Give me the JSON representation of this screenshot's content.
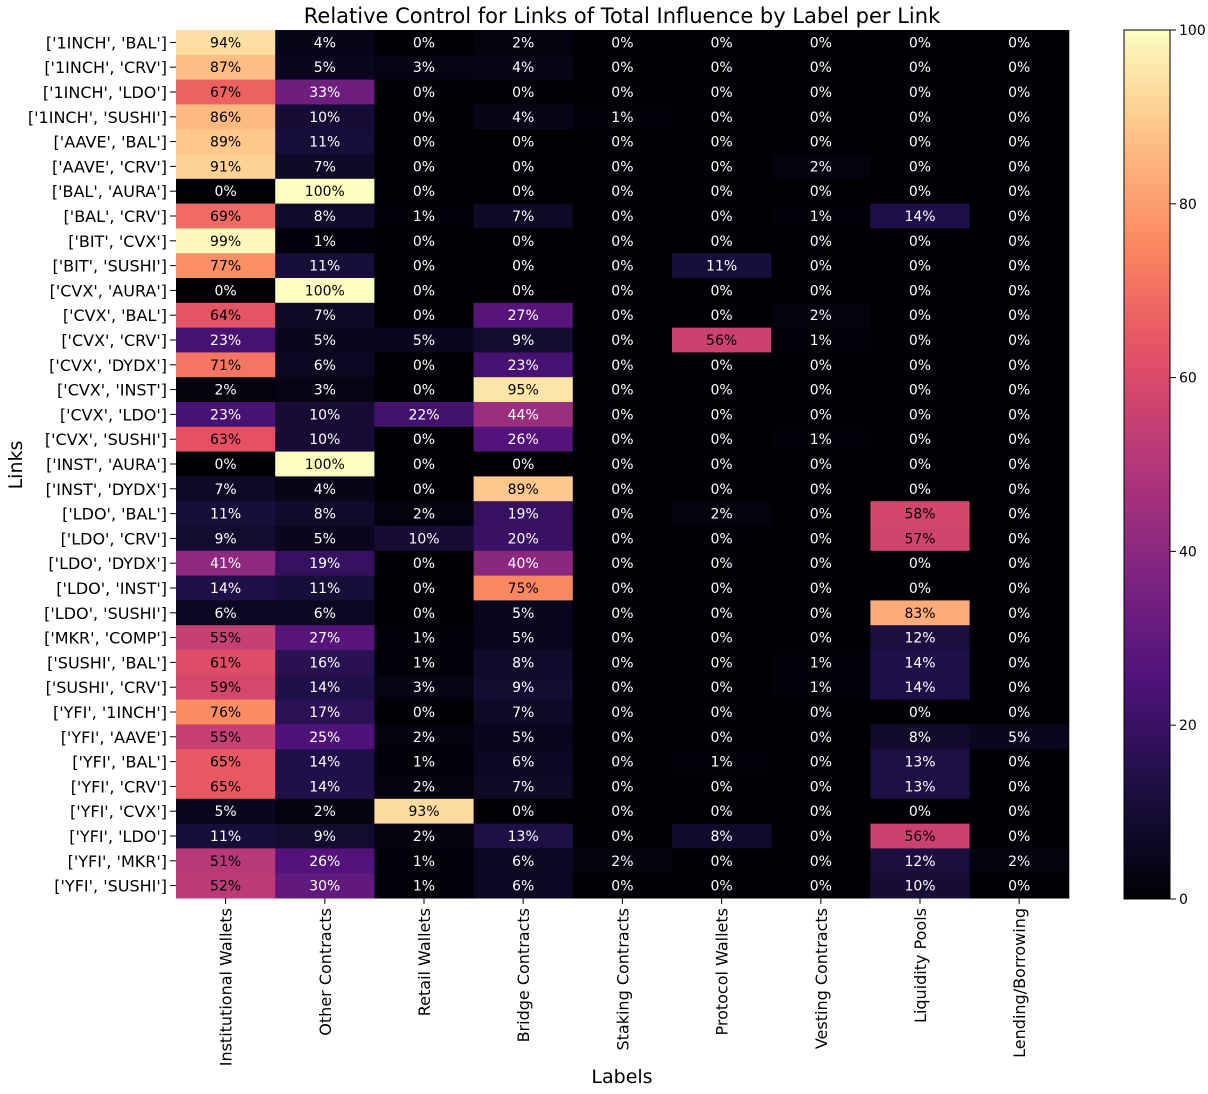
{
  "chart_data": {
    "type": "heatmap",
    "title": "Relative Control for Links of Total Influence by Label per Link",
    "xlabel": "Labels",
    "ylabel": "Links",
    "colormap": "magma",
    "colorbar": {
      "min": 0,
      "max": 100,
      "ticks": [
        0,
        20,
        40,
        60,
        80,
        100
      ]
    },
    "columns": [
      "Institutional Wallets",
      "Other Contracts",
      "Retail Wallets",
      "Bridge Contracts",
      "Staking Contracts",
      "Protocol Wallets",
      "Vesting Contracts",
      "Liquidity Pools",
      "Lending/Borrowing"
    ],
    "rows": [
      "['1INCH', 'BAL']",
      "['1INCH', 'CRV']",
      "['1INCH', 'LDO']",
      "['1INCH', 'SUSHI']",
      "['AAVE', 'BAL']",
      "['AAVE', 'CRV']",
      "['BAL', 'AURA']",
      "['BAL', 'CRV']",
      "['BIT', 'CVX']",
      "['BIT', 'SUSHI']",
      "['CVX', 'AURA']",
      "['CVX', 'BAL']",
      "['CVX', 'CRV']",
      "['CVX', 'DYDX']",
      "['CVX', 'INST']",
      "['CVX', 'LDO']",
      "['CVX', 'SUSHI']",
      "['INST', 'AURA']",
      "['INST', 'DYDX']",
      "['LDO', 'BAL']",
      "['LDO', 'CRV']",
      "['LDO', 'DYDX']",
      "['LDO', 'INST']",
      "['LDO', 'SUSHI']",
      "['MKR', 'COMP']",
      "['SUSHI', 'BAL']",
      "['SUSHI', 'CRV']",
      "['YFI', '1INCH']",
      "['YFI', 'AAVE']",
      "['YFI', 'BAL']",
      "['YFI', 'CRV']",
      "['YFI', 'CVX']",
      "['YFI', 'LDO']",
      "['YFI', 'MKR']",
      "['YFI', 'SUSHI']"
    ],
    "values": [
      [
        94,
        4,
        0,
        2,
        0,
        0,
        0,
        0,
        0
      ],
      [
        87,
        5,
        3,
        4,
        0,
        0,
        0,
        0,
        0
      ],
      [
        67,
        33,
        0,
        0,
        0,
        0,
        0,
        0,
        0
      ],
      [
        86,
        10,
        0,
        4,
        1,
        0,
        0,
        0,
        0
      ],
      [
        89,
        11,
        0,
        0,
        0,
        0,
        0,
        0,
        0
      ],
      [
        91,
        7,
        0,
        0,
        0,
        0,
        2,
        0,
        0
      ],
      [
        0,
        100,
        0,
        0,
        0,
        0,
        0,
        0,
        0
      ],
      [
        69,
        8,
        1,
        7,
        0,
        0,
        1,
        14,
        0
      ],
      [
        99,
        1,
        0,
        0,
        0,
        0,
        0,
        0,
        0
      ],
      [
        77,
        11,
        0,
        0,
        0,
        11,
        0,
        0,
        0
      ],
      [
        0,
        100,
        0,
        0,
        0,
        0,
        0,
        0,
        0
      ],
      [
        64,
        7,
        0,
        27,
        0,
        0,
        2,
        0,
        0
      ],
      [
        23,
        5,
        5,
        9,
        0,
        56,
        1,
        0,
        0
      ],
      [
        71,
        6,
        0,
        23,
        0,
        0,
        0,
        0,
        0
      ],
      [
        2,
        3,
        0,
        95,
        0,
        0,
        0,
        0,
        0
      ],
      [
        23,
        10,
        22,
        44,
        0,
        0,
        0,
        0,
        0
      ],
      [
        63,
        10,
        0,
        26,
        0,
        0,
        1,
        0,
        0
      ],
      [
        0,
        100,
        0,
        0,
        0,
        0,
        0,
        0,
        0
      ],
      [
        7,
        4,
        0,
        89,
        0,
        0,
        0,
        0,
        0
      ],
      [
        11,
        8,
        2,
        19,
        0,
        2,
        0,
        58,
        0
      ],
      [
        9,
        5,
        10,
        20,
        0,
        0,
        0,
        57,
        0
      ],
      [
        41,
        19,
        0,
        40,
        0,
        0,
        0,
        0,
        0
      ],
      [
        14,
        11,
        0,
        75,
        0,
        0,
        0,
        0,
        0
      ],
      [
        6,
        6,
        0,
        5,
        0,
        0,
        0,
        83,
        0
      ],
      [
        55,
        27,
        1,
        5,
        0,
        0,
        0,
        12,
        0
      ],
      [
        61,
        16,
        1,
        8,
        0,
        0,
        1,
        14,
        0
      ],
      [
        59,
        14,
        3,
        9,
        0,
        0,
        1,
        14,
        0
      ],
      [
        76,
        17,
        0,
        7,
        0,
        0,
        0,
        0,
        0
      ],
      [
        55,
        25,
        2,
        5,
        0,
        0,
        0,
        8,
        5
      ],
      [
        65,
        14,
        1,
        6,
        0,
        1,
        0,
        13,
        0
      ],
      [
        65,
        14,
        2,
        7,
        0,
        0,
        0,
        13,
        0
      ],
      [
        5,
        2,
        93,
        0,
        0,
        0,
        0,
        0,
        0
      ],
      [
        11,
        9,
        2,
        13,
        0,
        8,
        0,
        56,
        0
      ],
      [
        51,
        26,
        1,
        6,
        2,
        0,
        0,
        12,
        2
      ],
      [
        52,
        30,
        1,
        6,
        0,
        0,
        0,
        10,
        0
      ]
    ],
    "value_format": "%"
  }
}
